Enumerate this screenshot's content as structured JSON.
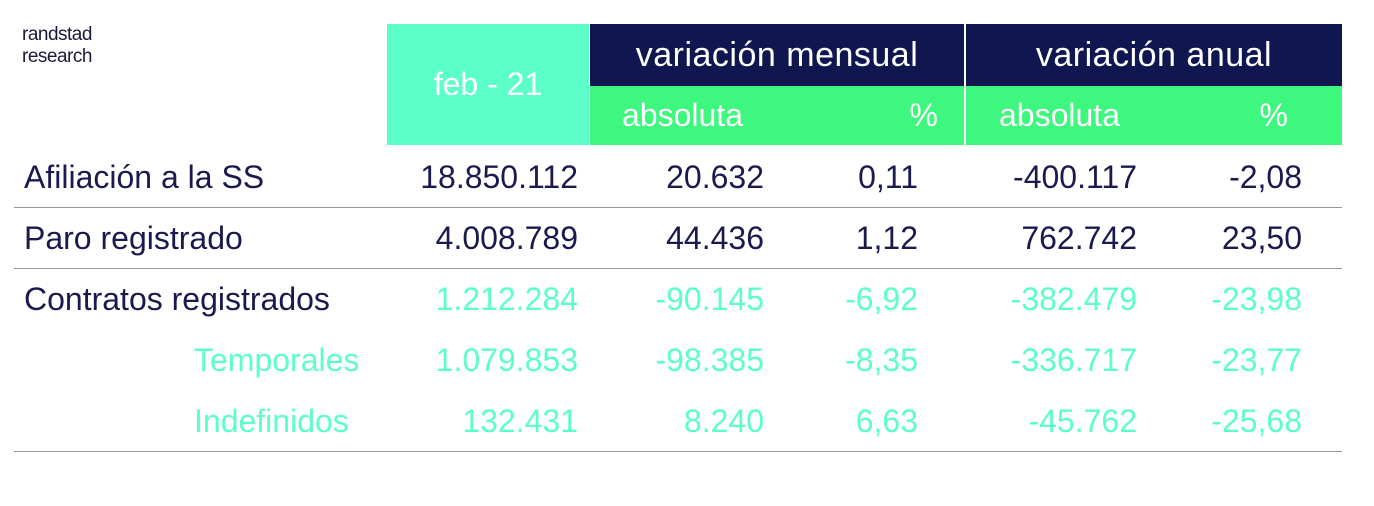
{
  "logo": {
    "line1": "randstad",
    "line2": "research"
  },
  "header": {
    "period": "feb - 21",
    "monthly": "variación mensual",
    "annual": "variación anual",
    "absolute": "absoluta",
    "percent": "%"
  },
  "rows": [
    {
      "label": "Afiliación a la SS",
      "value": "18.850.112",
      "m_abs": "20.632",
      "m_pct": "0,11",
      "a_abs": "-400.117",
      "a_pct": "-2,08"
    },
    {
      "label": "Paro registrado",
      "value": "4.008.789",
      "m_abs": "44.436",
      "m_pct": "1,12",
      "a_abs": "762.742",
      "a_pct": "23,50"
    },
    {
      "label": "Contratos registrados",
      "value": "1.212.284",
      "m_abs": "-90.145",
      "m_pct": "-6,92",
      "a_abs": "-382.479",
      "a_pct": "-23,98"
    },
    {
      "label": "Temporales",
      "value": "1.079.853",
      "m_abs": "-98.385",
      "m_pct": "-8,35",
      "a_abs": "-336.717",
      "a_pct": "-23,77"
    },
    {
      "label": "Indefinidos",
      "value": "132.431",
      "m_abs": "8.240",
      "m_pct": "6,63",
      "a_abs": "-45.762",
      "a_pct": "-25,68"
    }
  ],
  "colors": {
    "navy": "#0f1650",
    "mint": "#5dffc8",
    "green": "#3ef77e",
    "text": "#1a1a4e"
  }
}
